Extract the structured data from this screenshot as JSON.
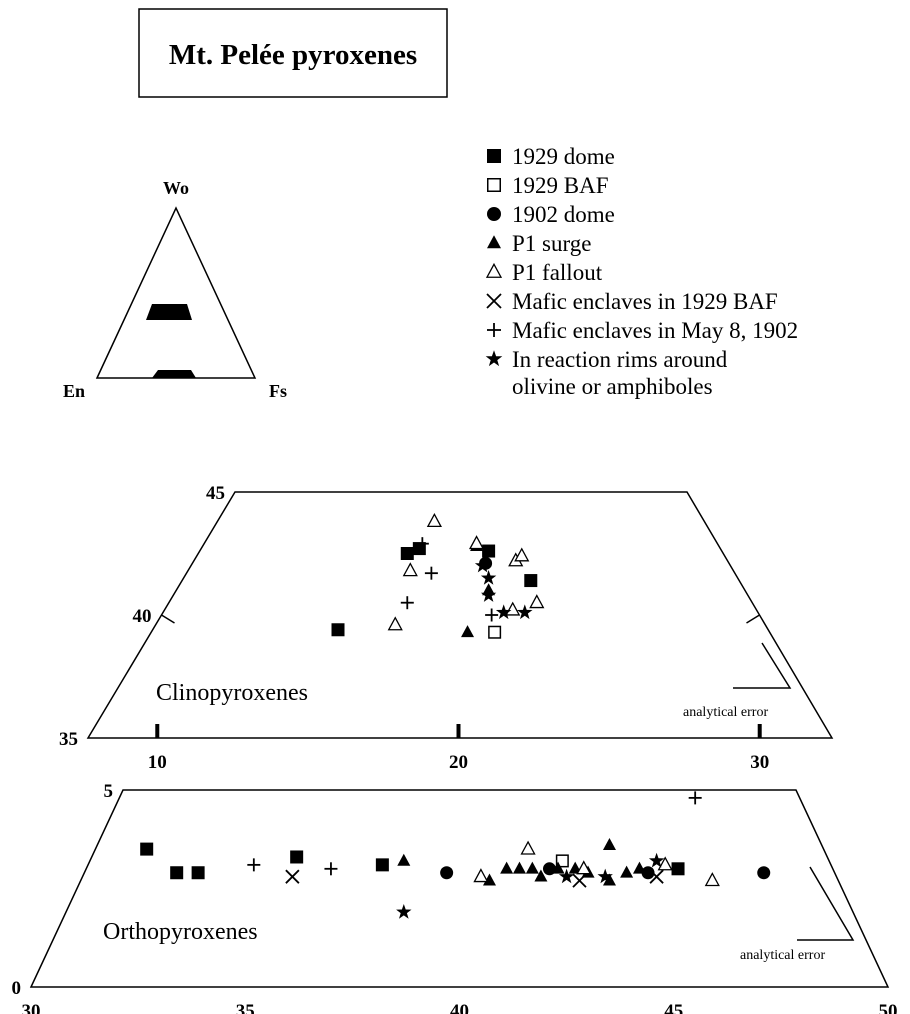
{
  "title": "Mt. Pelée pyroxenes",
  "ternary": {
    "top": "Wo",
    "left": "En",
    "right": "Fs"
  },
  "legend": [
    {
      "symbol": "filled-square-icon",
      "label": "1929 dome"
    },
    {
      "symbol": "open-square-icon",
      "label": "1929 BAF"
    },
    {
      "symbol": "filled-circle-icon",
      "label": "1902 dome"
    },
    {
      "symbol": "filled-triangle-icon",
      "label": "P1 surge"
    },
    {
      "symbol": "open-triangle-icon",
      "label": "P1 fallout"
    },
    {
      "symbol": "cross-x-icon",
      "label": "Mafic enclaves in 1929 BAF"
    },
    {
      "symbol": "plus-icon",
      "label": "Mafic enclaves in May 8, 1902"
    },
    {
      "symbol": "star-icon",
      "label": "In reaction rims around\nolivine or amphiboles"
    }
  ],
  "chart_data": [
    {
      "type": "scatter",
      "label": "Clinopyroxenes",
      "note": "analytical error",
      "x_axis": {
        "range": [
          7.7,
          32.4
        ],
        "ticks": [
          10,
          20,
          30
        ]
      },
      "y_axis": {
        "range": [
          35,
          45
        ],
        "ticks": [
          35,
          40,
          45
        ]
      },
      "series": [
        {
          "name": "1929 dome",
          "points": [
            [
              16.0,
              39.4
            ],
            [
              18.3,
              42.5
            ],
            [
              18.7,
              42.7
            ],
            [
              21.0,
              42.6
            ],
            [
              22.4,
              41.4
            ]
          ]
        },
        {
          "name": "1929 BAF",
          "points": [
            [
              21.2,
              39.3
            ]
          ]
        },
        {
          "name": "1902 dome",
          "points": [
            [
              20.9,
              42.1
            ]
          ]
        },
        {
          "name": "P1 surge",
          "points": [
            [
              20.6,
              42.8
            ],
            [
              20.3,
              39.3
            ],
            [
              21.0,
              41.0
            ]
          ]
        },
        {
          "name": "P1 fallout",
          "points": [
            [
              19.2,
              43.8
            ],
            [
              18.4,
              41.8
            ],
            [
              17.9,
              39.6
            ],
            [
              20.6,
              42.9
            ],
            [
              21.9,
              42.2
            ],
            [
              22.1,
              42.4
            ],
            [
              22.6,
              40.5
            ],
            [
              21.8,
              40.2
            ]
          ]
        },
        {
          "name": "Mafic enclaves in May 8, 1902",
          "points": [
            [
              18.8,
              42.9
            ],
            [
              19.1,
              41.7
            ],
            [
              18.3,
              40.5
            ],
            [
              21.1,
              40.0
            ]
          ]
        },
        {
          "name": "In reaction rims around\nolivine or amphiboles",
          "points": [
            [
              20.8,
              42.0
            ],
            [
              21.0,
              41.5
            ],
            [
              21.0,
              40.8
            ],
            [
              21.5,
              40.1
            ],
            [
              22.2,
              40.1
            ]
          ]
        }
      ]
    },
    {
      "type": "scatter",
      "label": "Orthopyroxenes",
      "note": "analytical error",
      "x_axis": {
        "range": [
          30,
          50
        ],
        "ticks": [
          30,
          35,
          40,
          45,
          50
        ]
      },
      "y_axis": {
        "range": [
          0,
          5
        ],
        "ticks": [
          0,
          5
        ]
      },
      "series": [
        {
          "name": "1929 dome",
          "points": [
            [
              32.7,
              3.5
            ],
            [
              33.4,
              2.9
            ],
            [
              33.9,
              2.9
            ],
            [
              36.2,
              3.3
            ],
            [
              38.2,
              3.1
            ],
            [
              45.1,
              3.0
            ]
          ]
        },
        {
          "name": "1929 BAF",
          "points": [
            [
              42.4,
              3.2
            ]
          ]
        },
        {
          "name": "1902 dome",
          "points": [
            [
              39.7,
              2.9
            ],
            [
              42.1,
              3.0
            ],
            [
              44.4,
              2.9
            ],
            [
              47.1,
              2.9
            ]
          ]
        },
        {
          "name": "P1 surge",
          "points": [
            [
              38.7,
              3.2
            ],
            [
              40.7,
              2.7
            ],
            [
              41.1,
              3.0
            ],
            [
              41.4,
              3.0
            ],
            [
              41.7,
              3.0
            ],
            [
              41.9,
              2.8
            ],
            [
              42.3,
              3.0
            ],
            [
              42.7,
              3.0
            ],
            [
              43.0,
              2.9
            ],
            [
              43.5,
              2.7
            ],
            [
              43.9,
              2.9
            ],
            [
              43.5,
              3.6
            ],
            [
              44.2,
              3.0
            ]
          ]
        },
        {
          "name": "P1 fallout",
          "points": [
            [
              40.5,
              2.8
            ],
            [
              41.6,
              3.5
            ],
            [
              42.9,
              3.0
            ],
            [
              44.8,
              3.1
            ],
            [
              45.9,
              2.7
            ]
          ]
        },
        {
          "name": "Mafic enclaves in 1929 BAF",
          "points": [
            [
              36.1,
              2.8
            ],
            [
              42.8,
              2.7
            ],
            [
              44.6,
              2.8
            ]
          ]
        },
        {
          "name": "Mafic enclaves in May 8, 1902",
          "points": [
            [
              35.2,
              3.1
            ],
            [
              37.0,
              3.0
            ],
            [
              45.5,
              4.8
            ]
          ]
        },
        {
          "name": "In reaction rims around\nolivine or amphiboles",
          "points": [
            [
              38.7,
              1.9
            ],
            [
              42.5,
              2.8
            ],
            [
              43.4,
              2.8
            ],
            [
              44.6,
              3.2
            ]
          ]
        }
      ]
    }
  ]
}
